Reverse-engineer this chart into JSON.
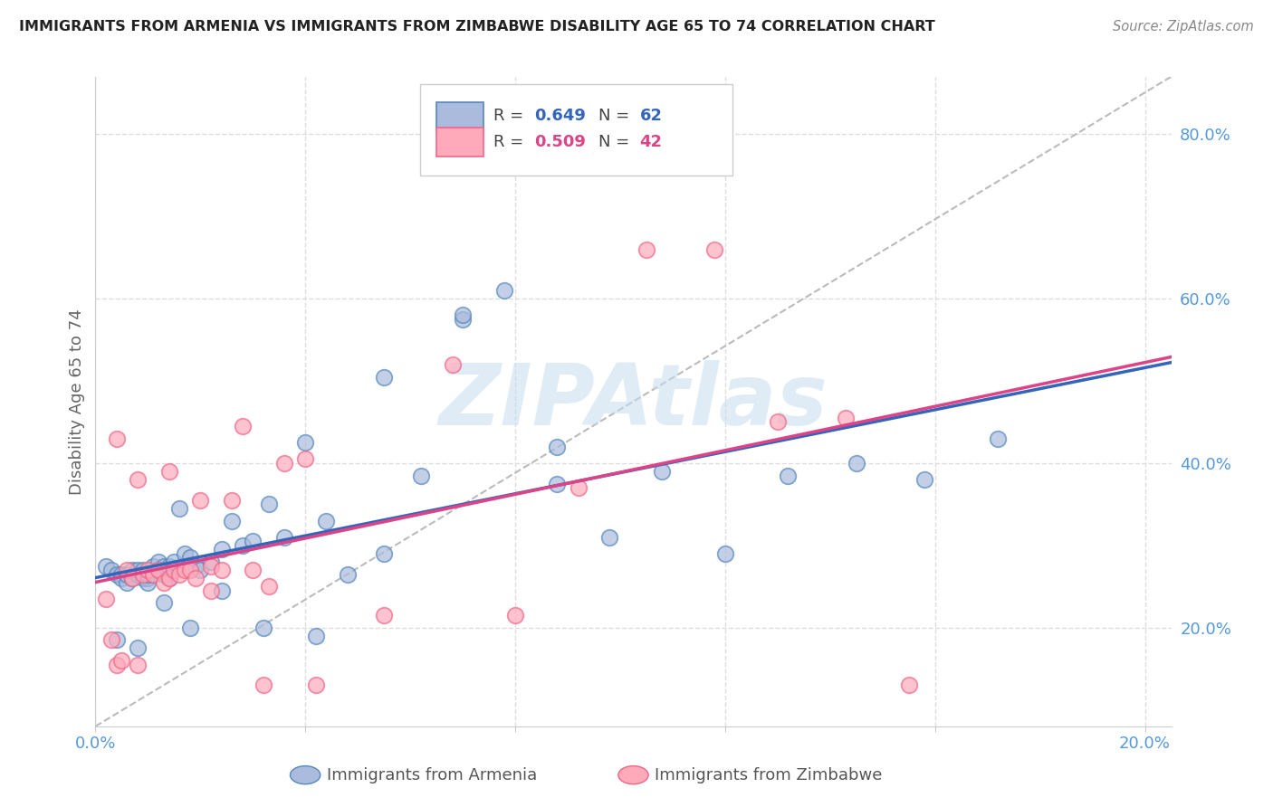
{
  "title": "IMMIGRANTS FROM ARMENIA VS IMMIGRANTS FROM ZIMBABWE DISABILITY AGE 65 TO 74 CORRELATION CHART",
  "source": "Source: ZipAtlas.com",
  "ylabel": "Disability Age 65 to 74",
  "xlim": [
    0.0,
    0.205
  ],
  "ylim": [
    0.08,
    0.87
  ],
  "xtick_positions": [
    0.0,
    0.04,
    0.08,
    0.12,
    0.16,
    0.2
  ],
  "xtick_labels": [
    "0.0%",
    "",
    "",
    "",
    "",
    "20.0%"
  ],
  "ytick_positions": [
    0.2,
    0.4,
    0.6,
    0.8
  ],
  "ytick_labels": [
    "20.0%",
    "40.0%",
    "60.0%",
    "80.0%"
  ],
  "armenia_face": "#AABBDD",
  "armenia_edge": "#5588BB",
  "zimbabwe_face": "#FFAABB",
  "zimbabwe_edge": "#EE6688",
  "armenia_R": 0.649,
  "armenia_N": 62,
  "zimbabwe_R": 0.509,
  "zimbabwe_N": 42,
  "armenia_line_color": "#3366BB",
  "zimbabwe_line_color": "#DD4488",
  "ref_line_color": "#BBBBBB",
  "background_color": "#ffffff",
  "grid_color": "#DDDDDD",
  "title_color": "#222222",
  "axis_label_color": "#666666",
  "right_axis_color": "#5599DD",
  "bottom_axis_color": "#5599DD",
  "watermark": "ZIPAtlas",
  "watermark_color": "#C5DDEF",
  "armenia_scatter_x": [
    0.002,
    0.003,
    0.004,
    0.005,
    0.005,
    0.006,
    0.006,
    0.007,
    0.007,
    0.008,
    0.008,
    0.009,
    0.009,
    0.01,
    0.01,
    0.01,
    0.011,
    0.011,
    0.012,
    0.012,
    0.013,
    0.013,
    0.014,
    0.014,
    0.015,
    0.016,
    0.017,
    0.018,
    0.019,
    0.02,
    0.022,
    0.024,
    0.026,
    0.028,
    0.03,
    0.033,
    0.036,
    0.04,
    0.044,
    0.048,
    0.055,
    0.062,
    0.07,
    0.078,
    0.088,
    0.098,
    0.108,
    0.12,
    0.132,
    0.145,
    0.158,
    0.172,
    0.004,
    0.008,
    0.013,
    0.018,
    0.024,
    0.032,
    0.042,
    0.055,
    0.07,
    0.088
  ],
  "armenia_scatter_y": [
    0.275,
    0.27,
    0.265,
    0.265,
    0.26,
    0.255,
    0.265,
    0.27,
    0.26,
    0.265,
    0.27,
    0.26,
    0.27,
    0.26,
    0.255,
    0.265,
    0.275,
    0.265,
    0.27,
    0.28,
    0.275,
    0.265,
    0.26,
    0.275,
    0.28,
    0.345,
    0.29,
    0.285,
    0.275,
    0.27,
    0.28,
    0.295,
    0.33,
    0.3,
    0.305,
    0.35,
    0.31,
    0.425,
    0.33,
    0.265,
    0.29,
    0.385,
    0.575,
    0.61,
    0.42,
    0.31,
    0.39,
    0.29,
    0.385,
    0.4,
    0.38,
    0.43,
    0.185,
    0.175,
    0.23,
    0.2,
    0.245,
    0.2,
    0.19,
    0.505,
    0.58,
    0.375
  ],
  "zimbabwe_scatter_x": [
    0.002,
    0.003,
    0.004,
    0.005,
    0.006,
    0.007,
    0.008,
    0.009,
    0.01,
    0.011,
    0.012,
    0.013,
    0.014,
    0.015,
    0.016,
    0.017,
    0.018,
    0.019,
    0.02,
    0.022,
    0.024,
    0.026,
    0.028,
    0.03,
    0.033,
    0.036,
    0.04,
    0.004,
    0.008,
    0.014,
    0.022,
    0.032,
    0.042,
    0.055,
    0.068,
    0.08,
    0.092,
    0.105,
    0.118,
    0.13,
    0.143,
    0.155
  ],
  "zimbabwe_scatter_y": [
    0.235,
    0.185,
    0.155,
    0.16,
    0.27,
    0.26,
    0.155,
    0.265,
    0.27,
    0.265,
    0.27,
    0.255,
    0.26,
    0.27,
    0.265,
    0.27,
    0.27,
    0.26,
    0.355,
    0.275,
    0.27,
    0.355,
    0.445,
    0.27,
    0.25,
    0.4,
    0.405,
    0.43,
    0.38,
    0.39,
    0.245,
    0.13,
    0.13,
    0.215,
    0.52,
    0.215,
    0.37,
    0.66,
    0.66,
    0.45,
    0.455,
    0.13
  ]
}
